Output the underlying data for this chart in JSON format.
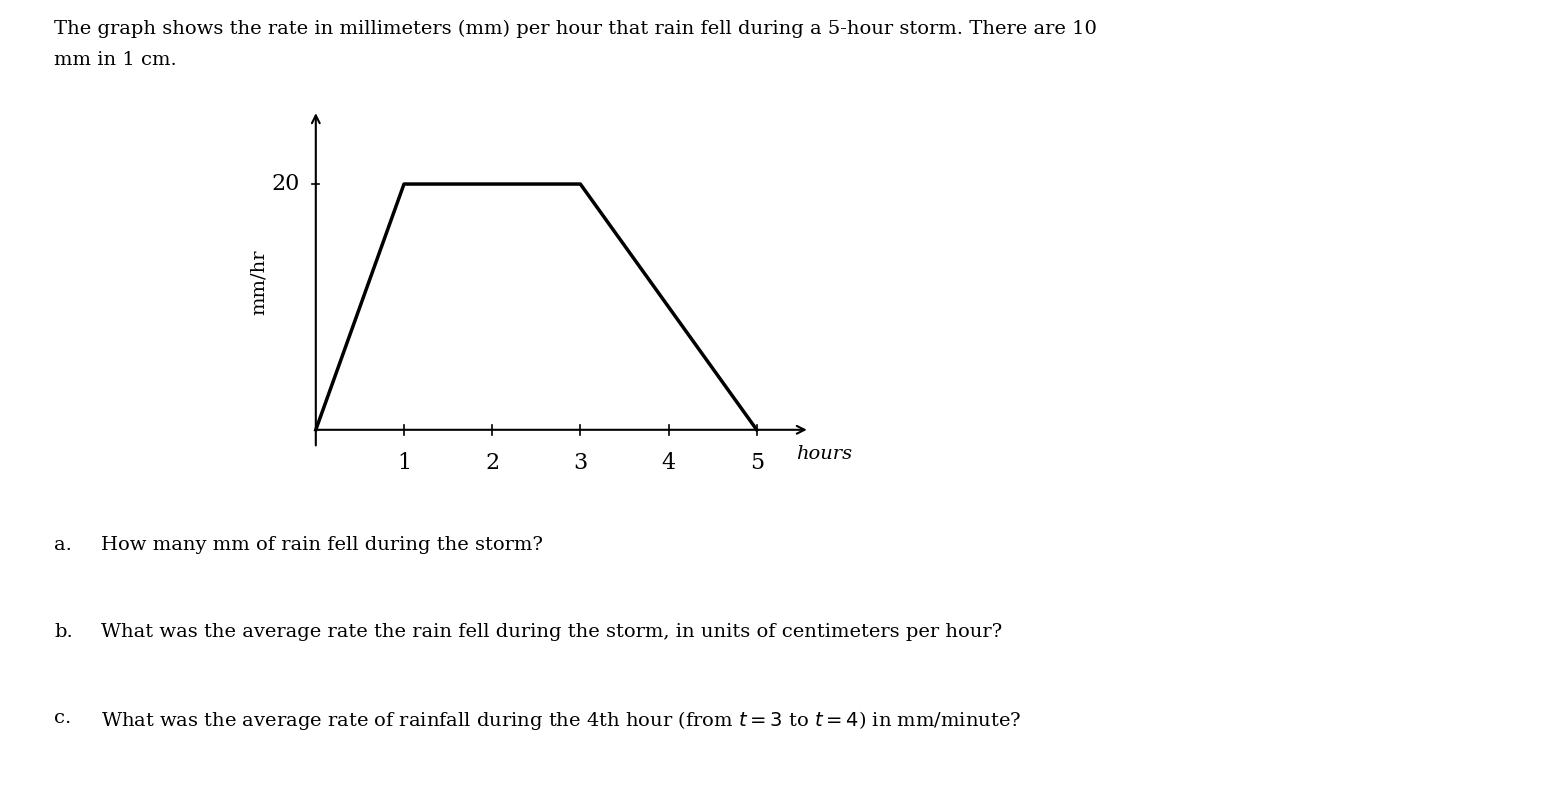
{
  "title_line1": "The graph shows the rate in millimeters (mm) per hour that rain fell during a 5-hour storm. There are 10",
  "title_line2": "mm in 1 cm.",
  "xlabel": "hours",
  "ylabel": "mm/hr",
  "x_data": [
    0,
    1,
    3,
    5
  ],
  "y_data": [
    0,
    20,
    20,
    0
  ],
  "ytick_vals": [
    20
  ],
  "ytick_labels": [
    "20"
  ],
  "xtick_vals": [
    1,
    2,
    3,
    4,
    5
  ],
  "xtick_labels": [
    "1",
    "2",
    "3",
    "4",
    "5"
  ],
  "xlim": [
    -0.05,
    5.6
  ],
  "ylim": [
    -3.5,
    26
  ],
  "line_color": "#000000",
  "line_width": 2.5,
  "background_color": "#ffffff",
  "q_a_label": "a.",
  "q_a_text": "How many mm of rain fell during the storm?",
  "q_b_label": "b.",
  "q_b_text": "What was the average rate the rain fell during the storm, in units of centimeters per hour?",
  "q_c_label": "c.",
  "q_c_text": "What was the average rate of rainfall during the 4th hour (from $t = 3$ to $t = 4$) in mm/minute?"
}
